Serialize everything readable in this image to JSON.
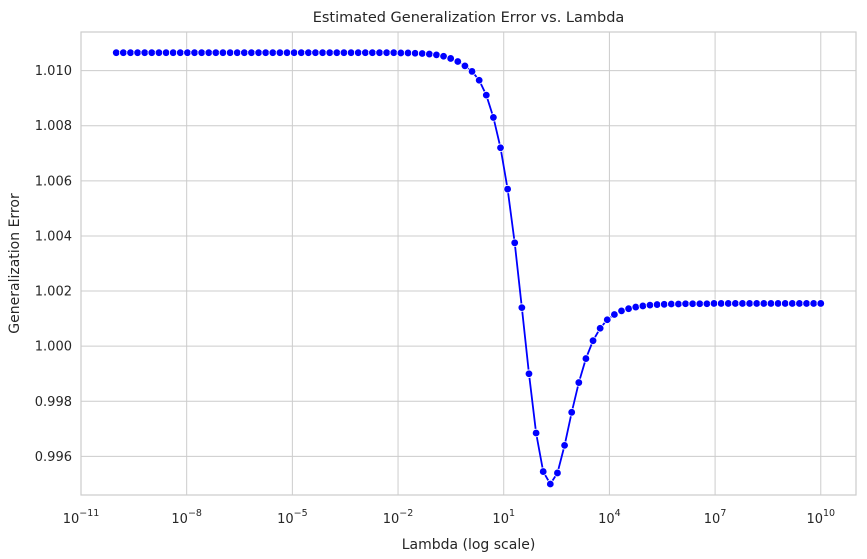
{
  "chart_data": {
    "type": "line",
    "title": "Estimated Generalization Error vs. Lambda",
    "xlabel": "Lambda (log scale)",
    "ylabel": "Generalization Error",
    "xscale": "log",
    "xlim": [
      1e-11,
      100000000000.0
    ],
    "ylim": [
      0.9946,
      1.0114
    ],
    "x_ticks": [
      {
        "base": "10",
        "exp": "−11",
        "value": 1e-11
      },
      {
        "base": "10",
        "exp": "−8",
        "value": 1e-08
      },
      {
        "base": "10",
        "exp": "−5",
        "value": 1e-05
      },
      {
        "base": "10",
        "exp": "−2",
        "value": 0.01
      },
      {
        "base": "10",
        "exp": "1",
        "value": 10
      },
      {
        "base": "10",
        "exp": "4",
        "value": 10000.0
      },
      {
        "base": "10",
        "exp": "7",
        "value": 10000000.0
      },
      {
        "base": "10",
        "exp": "10",
        "value": 10000000000.0
      }
    ],
    "y_ticks": [
      {
        "label": "0.996",
        "value": 0.996
      },
      {
        "label": "0.998",
        "value": 0.998
      },
      {
        "label": "1.000",
        "value": 1.0
      },
      {
        "label": "1.002",
        "value": 1.002
      },
      {
        "label": "1.004",
        "value": 1.004
      },
      {
        "label": "1.006",
        "value": 1.006
      },
      {
        "label": "1.008",
        "value": 1.008
      },
      {
        "label": "1.010",
        "value": 1.01
      }
    ],
    "grid": true,
    "color": "#0000ff",
    "series": [
      {
        "log10_lambda_range": [
          -10,
          10
        ],
        "num_points": 100,
        "x": [
          1e-10,
          1.59e-10,
          2.54e-10,
          4.04e-10,
          6.43e-10,
          1.02e-09,
          1.63e-09,
          2.6e-09,
          4.13e-09,
          6.58e-09,
          1.05e-08,
          1.67e-08,
          2.66e-08,
          4.23e-08,
          6.73e-08,
          1.07e-07,
          1.71e-07,
          2.72e-07,
          4.33e-07,
          6.89e-07,
          1.1e-06,
          1.75e-06,
          2.78e-06,
          4.43e-06,
          7.05e-06,
          1.12e-05,
          1.79e-05,
          2.85e-05,
          4.53e-05,
          7.22e-05,
          0.000115,
          0.000183,
          0.000291,
          0.000464,
          0.000739,
          0.00118,
          0.00187,
          0.00298,
          0.00475,
          0.00756,
          0.012,
          0.0192,
          0.0305,
          0.0486,
          0.0774,
          0.123,
          0.196,
          0.312,
          0.497,
          0.792,
          1.26,
          2.01,
          3.2,
          5.09,
          8.11,
          12.9,
          20.5,
          32.7,
          52.1,
          83.0,
          132,
          210,
          335,
          534,
          850,
          1353,
          2154,
          3430,
          5462,
          8697,
          13849,
          22051,
          35112,
          55908,
          89022,
          141747,
          225702,
          359381,
          572237,
          911163,
          1450829,
          2310130,
          3678380,
          5857021,
          9326033,
          14849683,
          23644894,
          37649358,
          59948425,
          95454846,
          151991108,
          242012826,
          385352859,
          613590727,
          977009957,
          1555676144,
          2477076356,
          3944206059,
          6280291442,
          10000000000.0
        ],
        "y": [
          1.01065,
          1.01065,
          1.01065,
          1.01065,
          1.01065,
          1.01065,
          1.01065,
          1.01065,
          1.01065,
          1.01065,
          1.01065,
          1.01065,
          1.01065,
          1.01065,
          1.01065,
          1.01065,
          1.01065,
          1.01065,
          1.01065,
          1.01065,
          1.01065,
          1.01065,
          1.01065,
          1.01065,
          1.01065,
          1.01065,
          1.01065,
          1.01065,
          1.01065,
          1.01065,
          1.01065,
          1.01065,
          1.01065,
          1.01065,
          1.01065,
          1.01065,
          1.01065,
          1.01065,
          1.01065,
          1.01065,
          1.01064,
          1.01064,
          1.01063,
          1.01062,
          1.0106,
          1.01057,
          1.01052,
          1.01044,
          1.01033,
          1.01017,
          1.00997,
          1.00965,
          1.00911,
          1.0083,
          1.0072,
          1.0057,
          1.00375,
          1.0014,
          0.999,
          0.99685,
          0.99545,
          0.995,
          0.9954,
          0.9964,
          0.9976,
          0.99868,
          0.99955,
          1.0002,
          1.00065,
          1.00096,
          1.00115,
          1.00128,
          1.00136,
          1.00142,
          1.00146,
          1.00149,
          1.00151,
          1.00152,
          1.00153,
          1.00153,
          1.00154,
          1.00154,
          1.00154,
          1.00154,
          1.00155,
          1.00155,
          1.00155,
          1.00155,
          1.00155,
          1.00155,
          1.00155,
          1.00155,
          1.00155,
          1.00155,
          1.00155,
          1.00155,
          1.00155,
          1.00155,
          1.00155,
          1.00155
        ]
      }
    ]
  }
}
